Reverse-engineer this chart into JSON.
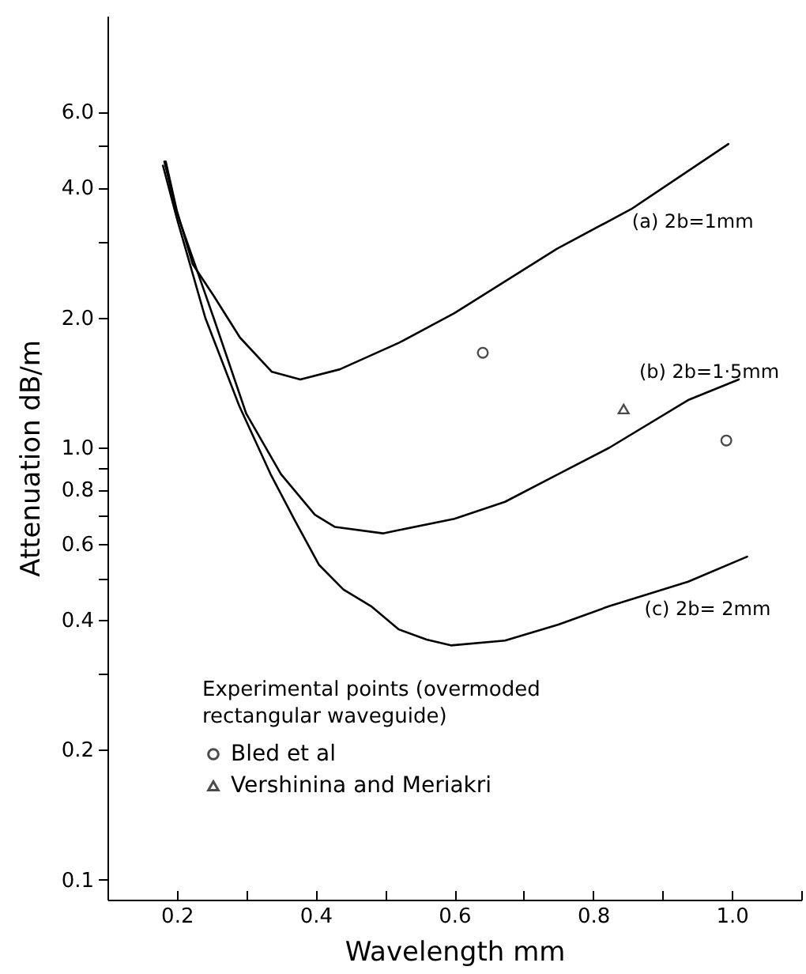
{
  "chart_data": {
    "type": "line",
    "xlabel": "Wavelength mm",
    "ylabel": "Attenuation dB/m",
    "legend_title": "Experimental points (overmoded rectangular waveguide)",
    "legend": "bottom left",
    "log": "y",
    "grid": false,
    "xlim": [
      0.1,
      1.1
    ],
    "xticks": [
      0.2,
      {
        "value": 0.3,
        "label": null
      },
      0.4,
      {
        "value": 0.5,
        "label": null
      },
      0.6,
      {
        "value": 0.7,
        "label": null
      },
      0.8,
      {
        "value": 0.9,
        "label": null
      },
      {
        "value": 1.0,
        "label": "1.0"
      },
      {
        "value": 1.1,
        "label": null
      }
    ],
    "ylim": [
      0.09,
      10
    ],
    "yticks": [
      0.1,
      0.2,
      {
        "value": 0.3,
        "label": null
      },
      0.4,
      {
        "value": 0.5,
        "label": null
      },
      0.6,
      {
        "value": 0.7,
        "label": null
      },
      0.8,
      {
        "value": 0.9,
        "label": null
      },
      {
        "value": 1.0,
        "label": "1.0"
      },
      {
        "value": 2.0,
        "label": "2.0"
      },
      {
        "value": 3.0,
        "label": null
      },
      {
        "value": 4.0,
        "label": "4.0"
      },
      {
        "value": 5.0,
        "label": null
      },
      {
        "value": 6.0,
        "label": "6.0"
      }
    ],
    "series": [
      {
        "name": "(a) 2b=1mm",
        "color": "#000000",
        "marker": "none",
        "x": [
          0.184,
          0.2,
          0.223,
          0.253,
          0.291,
          0.337,
          0.378,
          0.435,
          0.52,
          0.6,
          0.748,
          0.855,
          0.995
        ],
        "values": [
          4.6,
          3.54,
          2.66,
          2.25,
          1.8,
          1.5,
          1.44,
          1.52,
          1.75,
          2.05,
          2.89,
          3.57,
          5.05
        ]
      },
      {
        "name": "(b) 2b=1·5mm",
        "color": "#000000",
        "marker": "none",
        "x": [
          0.182,
          0.2,
          0.253,
          0.3,
          0.35,
          0.399,
          0.428,
          0.497,
          0.52,
          0.6,
          0.673,
          0.75,
          0.823,
          0.937,
          1.01
        ],
        "values": [
          4.6,
          3.5,
          2.0,
          1.2,
          0.87,
          0.7,
          0.656,
          0.634,
          0.645,
          0.685,
          0.75,
          0.87,
          1.0,
          1.29,
          1.44
        ]
      },
      {
        "name": "(c) 2b= 2mm",
        "color": "#000000",
        "marker": "none",
        "x": [
          0.18,
          0.2,
          0.241,
          0.29,
          0.335,
          0.37,
          0.405,
          0.44,
          0.48,
          0.52,
          0.56,
          0.595,
          0.673,
          0.75,
          0.823,
          0.937,
          1.022
        ],
        "values": [
          4.5,
          3.4,
          2.0,
          1.25,
          0.87,
          0.68,
          0.536,
          0.47,
          0.43,
          0.38,
          0.36,
          0.349,
          0.358,
          0.39,
          0.43,
          0.49,
          0.56
        ]
      },
      {
        "type": "scatter",
        "name": "Bled et al",
        "color": "#000000",
        "marker": "circle",
        "x": [
          0.641,
          0.992
        ],
        "values": [
          1.66,
          1.04
        ]
      },
      {
        "type": "scatter",
        "name": "Vershinina and Meriakri",
        "color": "#000000",
        "marker": "triangle",
        "x": [
          0.844
        ],
        "values": [
          1.23
        ]
      }
    ]
  }
}
